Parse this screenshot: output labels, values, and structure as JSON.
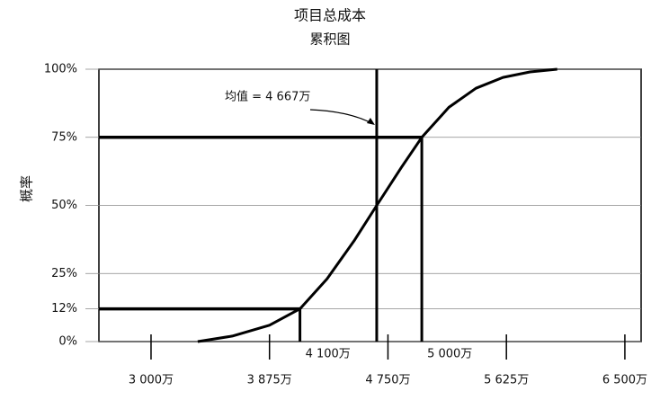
{
  "chart_data": {
    "type": "line",
    "title": "项目总成本",
    "subtitle": "累积图",
    "y_label": "概率",
    "x": [
      3345,
      3600,
      3875,
      4100,
      4300,
      4500,
      4667,
      4850,
      5000,
      5200,
      5400,
      5600,
      5800,
      6000
    ],
    "values": [
      0,
      2,
      6,
      12,
      23,
      37,
      50,
      64,
      75,
      86,
      93,
      97,
      99,
      100
    ],
    "color": "#000000",
    "xlim": [
      2615,
      6620
    ],
    "ylim": [
      0,
      100
    ],
    "xticks": [
      {
        "value": 3000,
        "label": "3 000万"
      },
      {
        "value": 3875,
        "label": "3 875万"
      },
      {
        "value": 4750,
        "label": "4 750万"
      },
      {
        "value": 5625,
        "label": "5 625万"
      },
      {
        "value": 6500,
        "label": "6 500万"
      }
    ],
    "yticks": [
      {
        "value": 0,
        "label": "0%"
      },
      {
        "value": 12,
        "label": "12%"
      },
      {
        "value": 25,
        "label": "25%"
      },
      {
        "value": 50,
        "label": "50%"
      },
      {
        "value": 75,
        "label": "75%"
      },
      {
        "value": 100,
        "label": "100%"
      }
    ],
    "mean": {
      "x": 4667,
      "label": "均值 = 4 667万"
    },
    "markers": [
      {
        "x": 4100,
        "y": 12,
        "label": "4 100万"
      },
      {
        "x": 5000,
        "y": 75,
        "label": "5 000万"
      }
    ]
  }
}
